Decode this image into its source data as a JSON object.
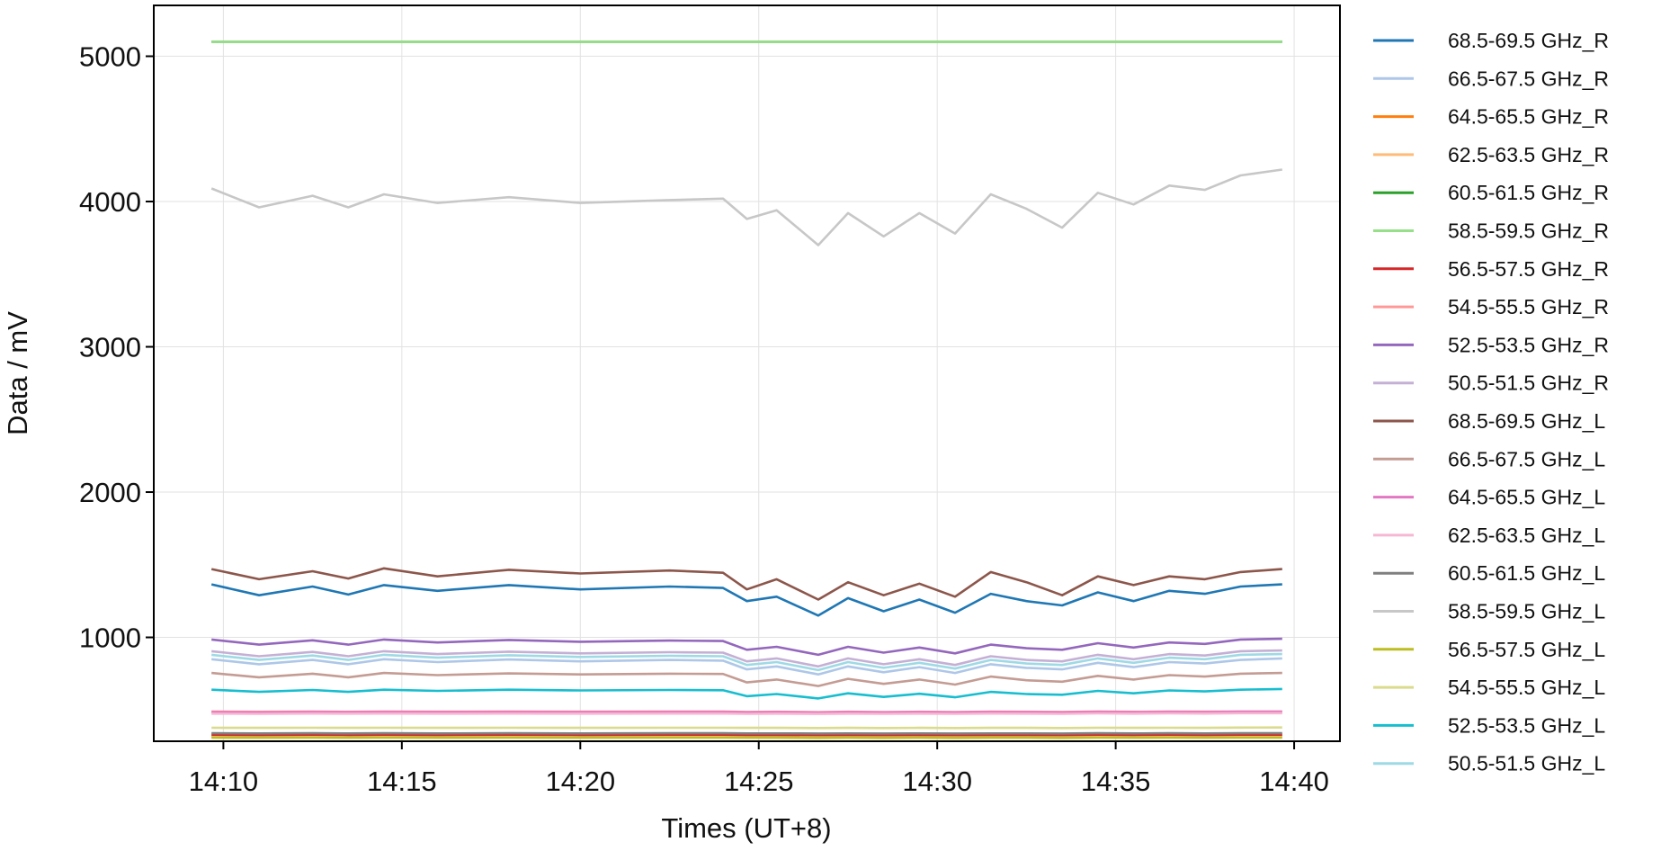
{
  "chart_data": {
    "type": "line",
    "xlabel": "Times (UT+8)",
    "ylabel": "Data / mV",
    "xlim": [
      "14:08:03",
      "14:41:17"
    ],
    "ylim": [
      285,
      5350
    ],
    "x_ticks": [
      "14:10",
      "14:15",
      "14:20",
      "14:25",
      "14:30",
      "14:35",
      "14:40"
    ],
    "y_ticks": [
      1000,
      2000,
      3000,
      4000,
      5000
    ],
    "grid": true,
    "legend_position": "outside-right",
    "x": [
      "14:09:40",
      "14:11:00",
      "14:12:30",
      "14:13:30",
      "14:14:30",
      "14:16:00",
      "14:18:00",
      "14:20:00",
      "14:22:30",
      "14:24:00",
      "14:24:40",
      "14:25:30",
      "14:26:40",
      "14:27:30",
      "14:28:30",
      "14:29:30",
      "14:30:30",
      "14:31:30",
      "14:32:30",
      "14:33:30",
      "14:34:30",
      "14:35:30",
      "14:36:30",
      "14:37:30",
      "14:38:30",
      "14:39:40"
    ],
    "series": [
      {
        "name": "68.5-69.5 GHz_R",
        "color": "#1f77b4",
        "values": [
          1365,
          1290,
          1350,
          1295,
          1360,
          1320,
          1360,
          1330,
          1350,
          1340,
          1250,
          1280,
          1150,
          1270,
          1180,
          1260,
          1170,
          1300,
          1250,
          1220,
          1310,
          1250,
          1320,
          1300,
          1350,
          1365
        ]
      },
      {
        "name": "66.5-67.5 GHz_R",
        "color": "#aec7e8",
        "values": [
          850,
          815,
          845,
          815,
          850,
          830,
          848,
          835,
          845,
          840,
          780,
          800,
          745,
          800,
          760,
          795,
          755,
          815,
          790,
          780,
          825,
          795,
          830,
          820,
          845,
          855
        ]
      },
      {
        "name": "64.5-65.5 GHz_R",
        "color": "#ff7f0e",
        "values": [
          315,
          314,
          316,
          315,
          316,
          315,
          316,
          315,
          316,
          315,
          314,
          315,
          313,
          315,
          314,
          315,
          314,
          315,
          315,
          314,
          316,
          315,
          316,
          315,
          316,
          316
        ]
      },
      {
        "name": "62.5-63.5 GHz_R",
        "color": "#ffbb78",
        "values": [
          322,
          321,
          322,
          321,
          322,
          321,
          322,
          321,
          322,
          322,
          321,
          321,
          320,
          321,
          320,
          321,
          320,
          321,
          321,
          320,
          322,
          321,
          322,
          321,
          322,
          322
        ]
      },
      {
        "name": "60.5-61.5 GHz_R",
        "color": "#2ca02c",
        "values": [
          5100,
          5100,
          5100,
          5100,
          5100,
          5100,
          5100,
          5100,
          5100,
          5100,
          5100,
          5100,
          5100,
          5100,
          5100,
          5100,
          5100,
          5100,
          5100,
          5100,
          5100,
          5100,
          5100,
          5100,
          5100,
          5100
        ]
      },
      {
        "name": "58.5-59.5 GHz_R",
        "color": "#98df8a",
        "values": [
          5100,
          5100,
          5100,
          5100,
          5100,
          5100,
          5100,
          5100,
          5100,
          5100,
          5100,
          5100,
          5100,
          5100,
          5100,
          5100,
          5100,
          5100,
          5100,
          5100,
          5100,
          5100,
          5100,
          5100,
          5100,
          5100
        ]
      },
      {
        "name": "56.5-57.5 GHz_R",
        "color": "#d62728",
        "values": [
          330,
          329,
          330,
          329,
          330,
          329,
          330,
          329,
          330,
          330,
          329,
          329,
          328,
          329,
          328,
          329,
          328,
          329,
          329,
          328,
          330,
          329,
          330,
          329,
          330,
          330
        ]
      },
      {
        "name": "54.5-55.5 GHz_R",
        "color": "#ff9896",
        "values": [
          490,
          488,
          490,
          488,
          490,
          489,
          490,
          489,
          490,
          490,
          487,
          488,
          485,
          488,
          486,
          488,
          486,
          489,
          488,
          487,
          490,
          488,
          490,
          489,
          490,
          490
        ]
      },
      {
        "name": "52.5-53.5 GHz_R",
        "color": "#9467bd",
        "values": [
          985,
          950,
          980,
          950,
          985,
          965,
          982,
          970,
          978,
          975,
          915,
          935,
          880,
          935,
          895,
          930,
          890,
          950,
          925,
          915,
          960,
          930,
          965,
          955,
          985,
          990
        ]
      },
      {
        "name": "50.5-51.5 GHz_R",
        "color": "#c5b0d5",
        "values": [
          905,
          870,
          900,
          870,
          905,
          885,
          902,
          890,
          898,
          895,
          835,
          855,
          800,
          855,
          815,
          850,
          810,
          870,
          845,
          835,
          880,
          850,
          885,
          875,
          905,
          910
        ]
      },
      {
        "name": "68.5-69.5 GHz_L",
        "color": "#8c564b",
        "values": [
          1470,
          1400,
          1455,
          1405,
          1475,
          1420,
          1465,
          1440,
          1460,
          1445,
          1330,
          1400,
          1260,
          1380,
          1290,
          1370,
          1280,
          1450,
          1380,
          1290,
          1420,
          1360,
          1420,
          1400,
          1450,
          1470
        ]
      },
      {
        "name": "66.5-67.5 GHz_L",
        "color": "#c49c94",
        "values": [
          755,
          725,
          750,
          725,
          755,
          740,
          752,
          745,
          750,
          748,
          690,
          710,
          665,
          715,
          680,
          710,
          675,
          730,
          705,
          695,
          735,
          710,
          740,
          730,
          750,
          755
        ]
      },
      {
        "name": "64.5-65.5 GHz_L",
        "color": "#e377c2",
        "values": [
          485,
          484,
          486,
          485,
          486,
          485,
          486,
          485,
          486,
          486,
          484,
          485,
          483,
          485,
          484,
          485,
          484,
          486,
          485,
          484,
          487,
          485,
          487,
          486,
          488,
          488
        ]
      },
      {
        "name": "62.5-63.5 GHz_L",
        "color": "#f7b6d2",
        "values": [
          475,
          474,
          476,
          475,
          476,
          475,
          476,
          475,
          476,
          476,
          474,
          475,
          473,
          475,
          474,
          475,
          474,
          476,
          475,
          474,
          477,
          475,
          477,
          476,
          478,
          478
        ]
      },
      {
        "name": "60.5-61.5 GHz_L",
        "color": "#7f7f7f",
        "values": [
          340,
          339,
          340,
          339,
          340,
          339,
          340,
          339,
          340,
          340,
          339,
          339,
          338,
          339,
          338,
          339,
          338,
          339,
          339,
          338,
          340,
          339,
          340,
          339,
          340,
          340
        ]
      },
      {
        "name": "58.5-59.5 GHz_L",
        "color": "#c7c7c7",
        "values": [
          4090,
          3960,
          4040,
          3960,
          4050,
          3990,
          4030,
          3990,
          4010,
          4020,
          3880,
          3940,
          3700,
          3920,
          3760,
          3920,
          3780,
          4050,
          3950,
          3820,
          4060,
          3980,
          4110,
          4080,
          4180,
          4220
        ]
      },
      {
        "name": "56.5-57.5 GHz_L",
        "color": "#bcbd22",
        "values": [
          310,
          309,
          310,
          309,
          310,
          309,
          310,
          309,
          310,
          310,
          309,
          309,
          308,
          309,
          308,
          309,
          308,
          309,
          309,
          308,
          310,
          309,
          310,
          309,
          310,
          310
        ]
      },
      {
        "name": "54.5-55.5 GHz_L",
        "color": "#dbdb8d",
        "values": [
          378,
          377,
          378,
          377,
          378,
          377,
          378,
          377,
          378,
          378,
          377,
          377,
          376,
          377,
          376,
          377,
          376,
          377,
          377,
          376,
          378,
          377,
          378,
          377,
          379,
          380
        ]
      },
      {
        "name": "52.5-53.5 GHz_L",
        "color": "#17becf",
        "values": [
          640,
          625,
          638,
          625,
          640,
          632,
          640,
          635,
          638,
          636,
          595,
          610,
          580,
          615,
          590,
          612,
          588,
          625,
          610,
          605,
          632,
          615,
          635,
          628,
          640,
          645
        ]
      },
      {
        "name": "50.5-51.5 GHz_L",
        "color": "#9edae5",
        "values": [
          880,
          845,
          875,
          845,
          880,
          860,
          877,
          865,
          873,
          870,
          810,
          830,
          775,
          830,
          790,
          825,
          785,
          845,
          820,
          810,
          855,
          825,
          860,
          850,
          880,
          885
        ]
      }
    ]
  }
}
